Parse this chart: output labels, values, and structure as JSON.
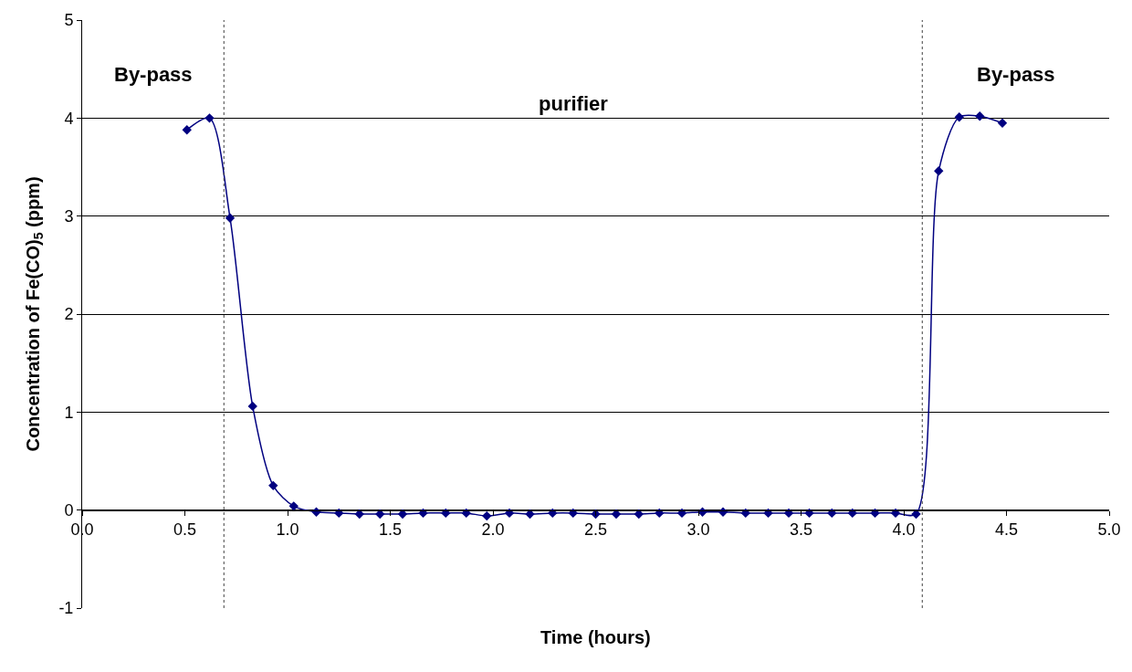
{
  "chart_data": {
    "type": "line",
    "xlabel": "Time (hours)",
    "ylabel": "Concentration of Fe(CO)$_{5}$ (ppm)",
    "xlim": [
      0,
      5
    ],
    "xticks": [
      {
        "value": 0,
        "label": "0.0"
      },
      {
        "value": 0.5,
        "label": "0.5"
      },
      {
        "value": 1,
        "label": "1.0"
      },
      {
        "value": 1.5,
        "label": "1.5"
      },
      {
        "value": 2,
        "label": "2.0"
      },
      {
        "value": 2.5,
        "label": "2.5"
      },
      {
        "value": 3,
        "label": "3.0"
      },
      {
        "value": 3.5,
        "label": "3.5"
      },
      {
        "value": 4,
        "label": "4.0"
      },
      {
        "value": 4.5,
        "label": "4.5"
      },
      {
        "value": 5,
        "label": "5.0"
      }
    ],
    "ylim": [
      -1,
      5
    ],
    "yticks": [
      -1,
      0,
      1,
      2,
      3,
      4,
      5
    ],
    "grid": "y",
    "marker": "diamond",
    "line_style": "solid",
    "x": [
      0.51,
      0.62,
      0.72,
      0.83,
      0.93,
      1.03,
      1.14,
      1.25,
      1.35,
      1.45,
      1.56,
      1.66,
      1.77,
      1.87,
      1.97,
      2.08,
      2.18,
      2.29,
      2.39,
      2.5,
      2.6,
      2.71,
      2.81,
      2.92,
      3.02,
      3.12,
      3.23,
      3.34,
      3.44,
      3.54,
      3.65,
      3.75,
      3.86,
      3.96,
      4.06,
      4.17,
      4.27,
      4.37,
      4.48
    ],
    "series": [
      {
        "color": "#000080",
        "values": [
          3.88,
          4.0,
          2.98,
          1.06,
          0.25,
          0.04,
          -0.02,
          -0.03,
          -0.04,
          -0.04,
          -0.04,
          -0.03,
          -0.03,
          -0.03,
          -0.06,
          -0.03,
          -0.04,
          -0.03,
          -0.03,
          -0.04,
          -0.04,
          -0.04,
          -0.03,
          -0.03,
          -0.02,
          -0.02,
          -0.03,
          -0.03,
          -0.03,
          -0.03,
          -0.03,
          -0.03,
          -0.03,
          -0.03,
          -0.04,
          3.46,
          4.01,
          4.02,
          3.95
        ]
      }
    ],
    "ref_lines": [
      {
        "axis": "x",
        "value": 0.69,
        "color": "#404040",
        "line_style": "dotted"
      },
      {
        "axis": "x",
        "value": 4.09,
        "color": "#404040",
        "line_style": "dotted"
      }
    ],
    "annotations": [
      "By-pass",
      "purifier",
      "By-pass"
    ]
  }
}
